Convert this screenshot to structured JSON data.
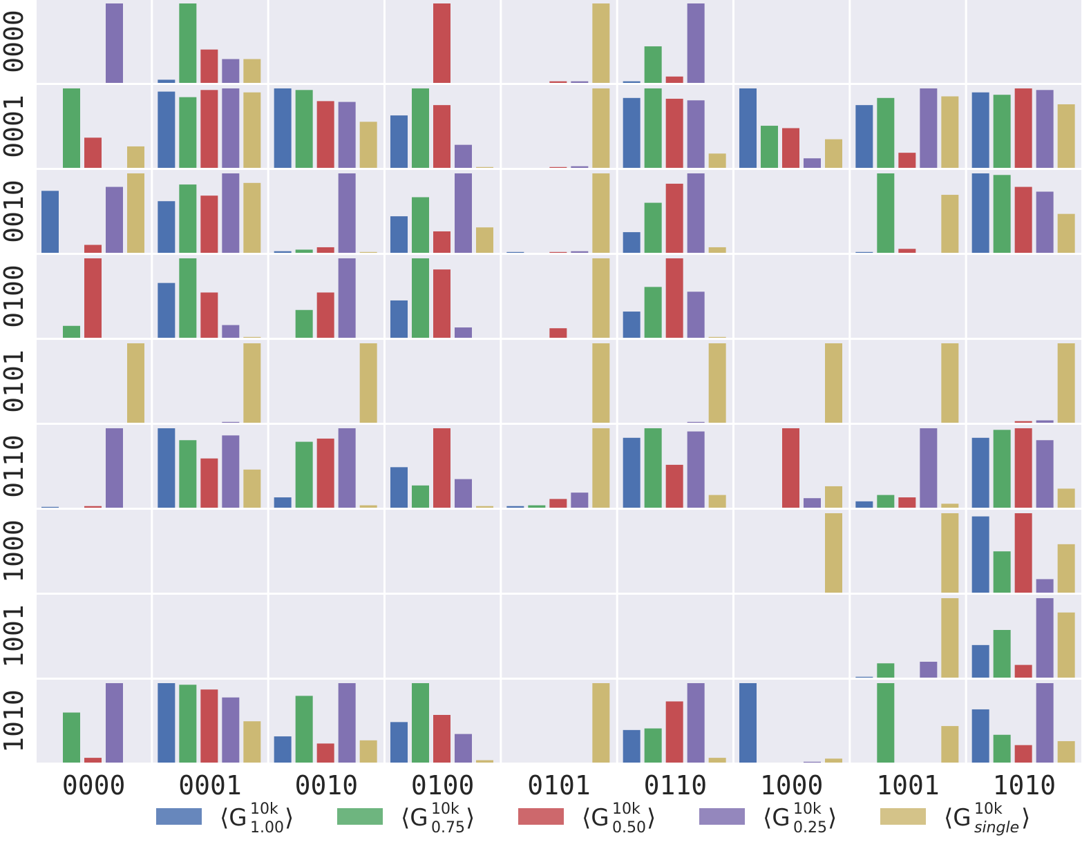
{
  "chart_data": {
    "type": "bar",
    "layout": "grid",
    "row_labels": [
      "0000",
      "0001",
      "0010",
      "0100",
      "0101",
      "0110",
      "1000",
      "1001",
      "1010"
    ],
    "col_labels": [
      "0000",
      "0001",
      "0010",
      "0100",
      "0101",
      "0110",
      "1000",
      "1001",
      "1010"
    ],
    "series_colors": [
      "#4c72b0",
      "#55a868",
      "#c44e52",
      "#8172b2",
      "#ccb974"
    ],
    "legend": {
      "placement": "bottom",
      "entries": [
        {
          "base": "⟨G",
          "sup": "10k",
          "sub": "1.00",
          "close": "⟩",
          "color": "#4c72b0"
        },
        {
          "base": "⟨G",
          "sup": "10k",
          "sub": "0.75",
          "close": "⟩",
          "color": "#55a868"
        },
        {
          "base": "⟨G",
          "sup": "10k",
          "sub": "0.50",
          "close": "⟩",
          "color": "#c44e52"
        },
        {
          "base": "⟨G",
          "sup": "10k",
          "sub": "0.25",
          "close": "⟩",
          "color": "#8172b2"
        },
        {
          "base": "⟨G",
          "sup": "10k",
          "sub": "single",
          "close": "⟩",
          "color": "#ccb974"
        }
      ]
    },
    "ylim": [
      0,
      1
    ],
    "grid_values": [
      [
        [
          0,
          0,
          0,
          1,
          0
        ],
        [
          0.04,
          1,
          0.42,
          0.3,
          0.3
        ],
        [
          0,
          0,
          0,
          0,
          0
        ],
        [
          0,
          0,
          1,
          0,
          0
        ],
        [
          0,
          0,
          0.02,
          0.02,
          1
        ],
        [
          0.02,
          0.46,
          0.08,
          1,
          0
        ],
        [
          0,
          0,
          0,
          0,
          0
        ],
        [
          0,
          0,
          0,
          0,
          0
        ],
        [
          0,
          0,
          0,
          0,
          0
        ]
      ],
      [
        [
          0,
          1,
          0.38,
          0,
          0.27
        ],
        [
          0.96,
          0.89,
          0.98,
          1,
          0.95
        ],
        [
          1,
          0.98,
          0.84,
          0.83,
          0.58
        ],
        [
          0.66,
          1,
          0.79,
          0.29,
          0.01
        ],
        [
          0,
          0,
          0.01,
          0.02,
          1
        ],
        [
          0.88,
          1,
          0.87,
          0.85,
          0.18
        ],
        [
          1,
          0.53,
          0.5,
          0.12,
          0.36
        ],
        [
          0.79,
          0.88,
          0.19,
          1,
          0.9
        ],
        [
          0.95,
          0.92,
          1,
          0.98,
          0.8
        ]
      ],
      [
        [
          0.78,
          0,
          0.1,
          0.83,
          1
        ],
        [
          0.65,
          0.86,
          0.72,
          1,
          0.88
        ],
        [
          0.02,
          0.04,
          0.07,
          1,
          0.01
        ],
        [
          0.46,
          0.7,
          0.27,
          1,
          0.32
        ],
        [
          0.01,
          0,
          0.01,
          0.02,
          1
        ],
        [
          0.26,
          0.63,
          0.87,
          1,
          0.07
        ],
        [
          0,
          0,
          0,
          0,
          0
        ],
        [
          0.01,
          1,
          0.05,
          0,
          0.73
        ],
        [
          1,
          0.98,
          0.83,
          0.77,
          0.49
        ]
      ],
      [
        [
          0,
          0.15,
          1,
          0,
          0
        ],
        [
          0.69,
          1,
          0.57,
          0.16,
          0.01
        ],
        [
          0,
          0.35,
          0.57,
          1,
          0
        ],
        [
          0.47,
          1,
          0.86,
          0.13,
          0
        ],
        [
          0,
          0,
          0.12,
          0,
          1
        ],
        [
          0.33,
          0.64,
          1,
          0.58,
          0.01
        ],
        [
          0,
          0,
          0,
          0,
          0
        ],
        [
          0,
          0,
          0,
          0,
          0
        ],
        [
          0,
          0,
          0,
          0,
          0
        ]
      ],
      [
        [
          0,
          0,
          0,
          0,
          1
        ],
        [
          0,
          0,
          0,
          0.01,
          1
        ],
        [
          0,
          0,
          0,
          0,
          1
        ],
        [
          0,
          0,
          0,
          0,
          0
        ],
        [
          0,
          0,
          0,
          0,
          1
        ],
        [
          0,
          0,
          0,
          0.01,
          1
        ],
        [
          0,
          0,
          0,
          0,
          1
        ],
        [
          0,
          0,
          0,
          0,
          1
        ],
        [
          0,
          0,
          0.02,
          0.03,
          1
        ]
      ],
      [
        [
          0.01,
          0,
          0.02,
          1,
          0
        ],
        [
          1,
          0.85,
          0.62,
          0.91,
          0.48
        ],
        [
          0.13,
          0.83,
          0.87,
          1,
          0.03
        ],
        [
          0.51,
          0.28,
          1,
          0.36,
          0.02
        ],
        [
          0.02,
          0.03,
          0.11,
          0.19,
          1
        ],
        [
          0.88,
          1,
          0.54,
          0.96,
          0.16
        ],
        [
          0,
          0,
          1,
          0.12,
          0.27
        ],
        [
          0.08,
          0.16,
          0.13,
          1,
          0.05
        ],
        [
          0.88,
          0.98,
          1,
          0.85,
          0.24
        ]
      ],
      [
        [
          0,
          0,
          0,
          0,
          0
        ],
        [
          0,
          0,
          0,
          0,
          0
        ],
        [
          0,
          0,
          0,
          0,
          0
        ],
        [
          0,
          0,
          0,
          0,
          0
        ],
        [
          0,
          0,
          0,
          0,
          0
        ],
        [
          0,
          0,
          0,
          0,
          0
        ],
        [
          0,
          0,
          0,
          0,
          1
        ],
        [
          0,
          0,
          0,
          0,
          1
        ],
        [
          0.96,
          0.52,
          1,
          0.17,
          0.61
        ]
      ],
      [
        [
          0,
          0,
          0,
          0,
          0
        ],
        [
          0,
          0,
          0,
          0,
          0
        ],
        [
          0,
          0,
          0,
          0,
          0
        ],
        [
          0,
          0,
          0,
          0,
          0
        ],
        [
          0,
          0,
          0,
          0,
          0
        ],
        [
          0,
          0,
          0,
          0,
          0
        ],
        [
          0,
          0,
          0,
          0,
          0
        ],
        [
          0.01,
          0.18,
          0,
          0.2,
          1
        ],
        [
          0.41,
          0.6,
          0.16,
          1,
          0.82
        ]
      ],
      [
        [
          0,
          0.63,
          0.06,
          1,
          0
        ],
        [
          1,
          0.98,
          0.92,
          0.82,
          0.52
        ],
        [
          0.33,
          0.84,
          0.24,
          1,
          0.28
        ],
        [
          0.51,
          1,
          0.6,
          0.36,
          0.03
        ],
        [
          0,
          0,
          0,
          0,
          1
        ],
        [
          0.41,
          0.43,
          0.77,
          1,
          0.06
        ],
        [
          1,
          0,
          0,
          0.01,
          0.05
        ],
        [
          0,
          1,
          0,
          0,
          0.46
        ],
        [
          0.67,
          0.35,
          0.22,
          1,
          0.27
        ]
      ]
    ]
  }
}
